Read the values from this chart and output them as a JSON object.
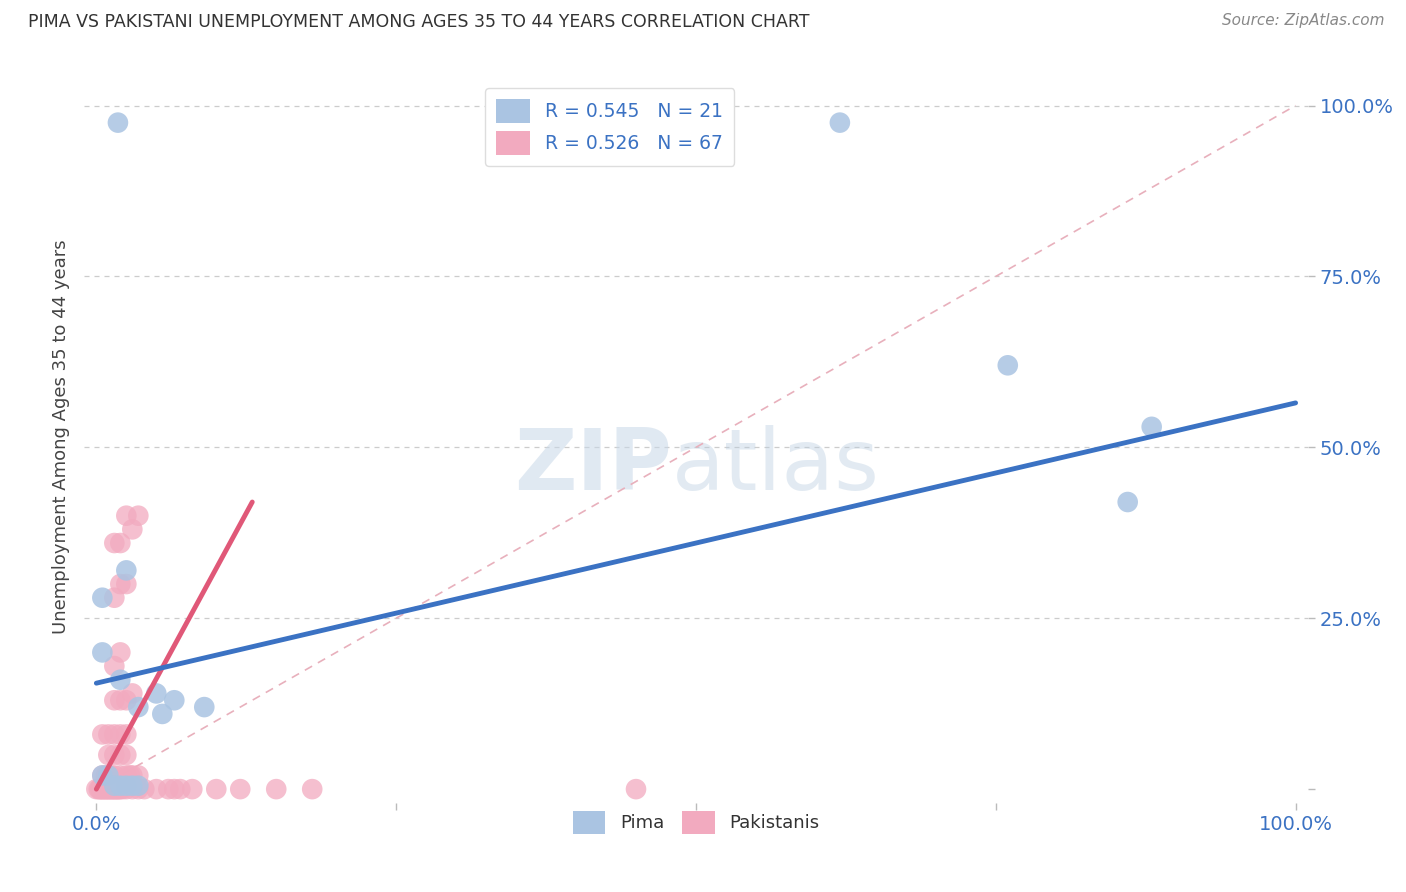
{
  "title": "PIMA VS PAKISTANI UNEMPLOYMENT AMONG AGES 35 TO 44 YEARS CORRELATION CHART",
  "source": "Source: ZipAtlas.com",
  "ylabel": "Unemployment Among Ages 35 to 44 years",
  "legend_r_pima": "R = 0.545",
  "legend_n_pima": "N = 21",
  "legend_r_pak": "R = 0.526",
  "legend_n_pak": "N = 67",
  "watermark_zip": "ZIP",
  "watermark_atlas": "atlas",
  "pima_color": "#aac4e2",
  "pima_line_color": "#3b72c3",
  "pak_color": "#f2aabf",
  "pak_line_color": "#e05878",
  "diagonal_color": "#e8b0bc",
  "background_color": "#ffffff",
  "pima_scatter": [
    [
      0.018,
      0.975
    ],
    [
      0.62,
      0.975
    ],
    [
      0.005,
      0.28
    ],
    [
      0.005,
      0.2
    ],
    [
      0.02,
      0.16
    ],
    [
      0.025,
      0.32
    ],
    [
      0.035,
      0.12
    ],
    [
      0.05,
      0.14
    ],
    [
      0.055,
      0.11
    ],
    [
      0.065,
      0.13
    ],
    [
      0.09,
      0.12
    ],
    [
      0.005,
      0.02
    ],
    [
      0.01,
      0.02
    ],
    [
      0.015,
      0.005
    ],
    [
      0.02,
      0.005
    ],
    [
      0.025,
      0.005
    ],
    [
      0.03,
      0.005
    ],
    [
      0.035,
      0.005
    ],
    [
      0.76,
      0.62
    ],
    [
      0.86,
      0.42
    ],
    [
      0.88,
      0.53
    ]
  ],
  "pak_scatter": [
    [
      0.0,
      0.0
    ],
    [
      0.002,
      0.0
    ],
    [
      0.003,
      0.0
    ],
    [
      0.004,
      0.0
    ],
    [
      0.005,
      0.0
    ],
    [
      0.006,
      0.0
    ],
    [
      0.007,
      0.0
    ],
    [
      0.008,
      0.0
    ],
    [
      0.009,
      0.0
    ],
    [
      0.01,
      0.0
    ],
    [
      0.011,
      0.0
    ],
    [
      0.012,
      0.0
    ],
    [
      0.013,
      0.0
    ],
    [
      0.014,
      0.0
    ],
    [
      0.015,
      0.0
    ],
    [
      0.016,
      0.0
    ],
    [
      0.017,
      0.0
    ],
    [
      0.018,
      0.0
    ],
    [
      0.019,
      0.0
    ],
    [
      0.02,
      0.0
    ],
    [
      0.022,
      0.0
    ],
    [
      0.025,
      0.0
    ],
    [
      0.03,
      0.0
    ],
    [
      0.035,
      0.0
    ],
    [
      0.04,
      0.0
    ],
    [
      0.05,
      0.0
    ],
    [
      0.06,
      0.0
    ],
    [
      0.065,
      0.0
    ],
    [
      0.07,
      0.0
    ],
    [
      0.08,
      0.0
    ],
    [
      0.1,
      0.0
    ],
    [
      0.12,
      0.0
    ],
    [
      0.15,
      0.0
    ],
    [
      0.18,
      0.0
    ],
    [
      0.45,
      0.0
    ],
    [
      0.005,
      0.02
    ],
    [
      0.008,
      0.02
    ],
    [
      0.012,
      0.02
    ],
    [
      0.015,
      0.02
    ],
    [
      0.02,
      0.02
    ],
    [
      0.025,
      0.02
    ],
    [
      0.028,
      0.02
    ],
    [
      0.03,
      0.02
    ],
    [
      0.035,
      0.02
    ],
    [
      0.01,
      0.05
    ],
    [
      0.015,
      0.05
    ],
    [
      0.02,
      0.05
    ],
    [
      0.025,
      0.05
    ],
    [
      0.005,
      0.08
    ],
    [
      0.01,
      0.08
    ],
    [
      0.015,
      0.08
    ],
    [
      0.02,
      0.08
    ],
    [
      0.025,
      0.08
    ],
    [
      0.015,
      0.13
    ],
    [
      0.02,
      0.13
    ],
    [
      0.025,
      0.13
    ],
    [
      0.03,
      0.14
    ],
    [
      0.015,
      0.18
    ],
    [
      0.02,
      0.2
    ],
    [
      0.015,
      0.28
    ],
    [
      0.02,
      0.3
    ],
    [
      0.025,
      0.3
    ],
    [
      0.015,
      0.36
    ],
    [
      0.02,
      0.36
    ],
    [
      0.03,
      0.38
    ],
    [
      0.025,
      0.4
    ],
    [
      0.035,
      0.4
    ]
  ],
  "xlim": [
    -0.01,
    1.01
  ],
  "ylim": [
    -0.02,
    1.05
  ],
  "pima_line": [
    0.0,
    0.155,
    1.0,
    0.565
  ],
  "pak_line": [
    0.0,
    0.0,
    0.13,
    0.42
  ]
}
